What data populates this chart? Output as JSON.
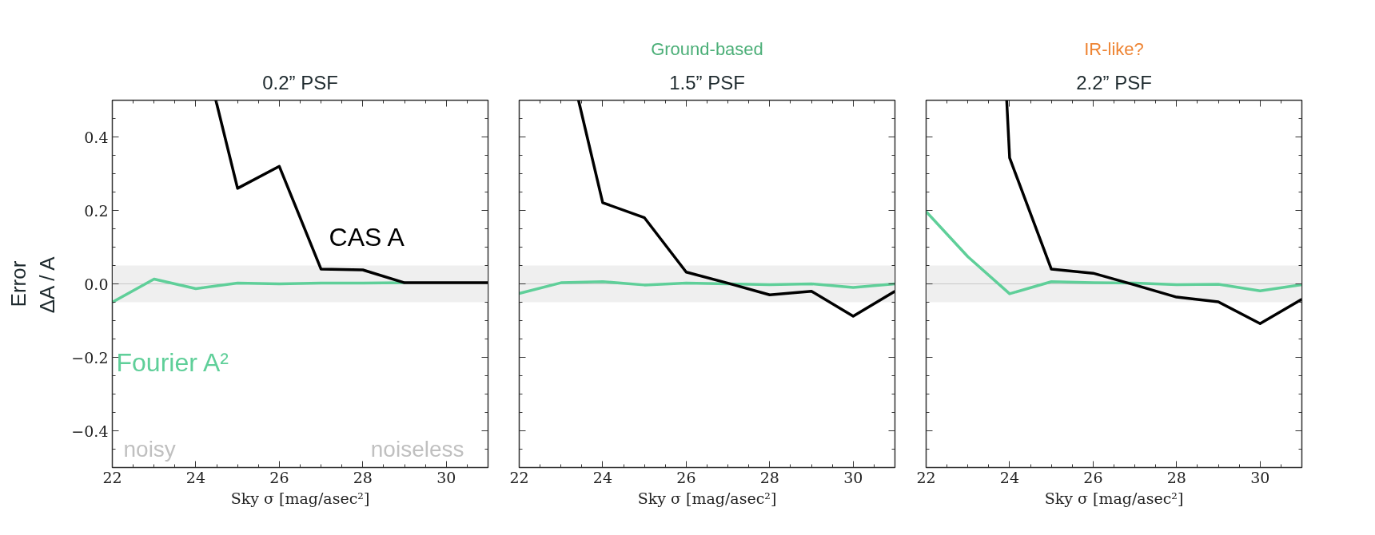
{
  "chart_data": [
    {
      "type": "line",
      "title": "0.2” PSF",
      "xlabel": "Sky σ [mag/asec²]",
      "ylabel": "Error\nΔA / A",
      "xlim": [
        22,
        31
      ],
      "ylim": [
        -0.5,
        0.5
      ],
      "xticks": [
        22,
        24,
        26,
        28,
        30
      ],
      "yticks": [
        {
          "value": -0.4,
          "label": "−0.4"
        },
        {
          "value": -0.2,
          "label": "−0.2"
        },
        {
          "value": 0,
          "label": "0.0"
        },
        {
          "value": 0.2,
          "label": "0.2"
        },
        {
          "value": 0.4,
          "label": "0.4"
        }
      ],
      "grid": false,
      "bands": [
        {
          "axis": "y",
          "from": -0.05,
          "to": 0.05,
          "color": "#efefef"
        }
      ],
      "ref_lines": [
        {
          "axis": "y",
          "value": 0,
          "color": "#c8c8c8"
        }
      ],
      "annotations": [
        "noisy",
        "noiseless"
      ],
      "series": [
        {
          "name": "Fourier A²",
          "color": "#5fcf99",
          "x": [
            22,
            23,
            24,
            25,
            26,
            27,
            28,
            29
          ],
          "values": [
            -0.05,
            0.013,
            -0.013,
            0.002,
            0.0,
            0.002,
            0.002,
            0.003
          ]
        },
        {
          "name": "CAS A",
          "color": "#000000",
          "x": [
            24.48,
            25,
            26,
            27,
            28,
            29,
            30,
            31
          ],
          "values": [
            0.5,
            0.26,
            0.32,
            0.04,
            0.038,
            0.003,
            0.003,
            0.003
          ]
        }
      ]
    },
    {
      "type": "line",
      "title": "1.5” PSF",
      "subtitle": "Ground-based",
      "xlabel": "Sky σ [mag/asec²]",
      "xlim": [
        22,
        31
      ],
      "ylim": [
        -0.5,
        0.5
      ],
      "xticks": [
        22,
        24,
        26,
        28,
        30
      ],
      "yticks": [
        {
          "value": -0.4,
          "label": null
        },
        {
          "value": -0.2,
          "label": null
        },
        {
          "value": 0,
          "label": null
        },
        {
          "value": 0.2,
          "label": null
        },
        {
          "value": 0.4,
          "label": null
        }
      ],
      "tick_labels": "x",
      "grid": false,
      "bands": [
        {
          "axis": "y",
          "from": -0.05,
          "to": 0.05,
          "color": "#efefef"
        }
      ],
      "ref_lines": [
        {
          "axis": "y",
          "value": 0,
          "color": "#c8c8c8"
        }
      ],
      "series": [
        {
          "color": "#5fcf99",
          "x": [
            22,
            23,
            24,
            25,
            26,
            27,
            28,
            29,
            30,
            31
          ],
          "values": [
            -0.026,
            0.003,
            0.006,
            -0.003,
            0.002,
            0.0,
            -0.002,
            0.0,
            -0.01,
            0.0
          ]
        },
        {
          "color": "#000000",
          "x": [
            23.42,
            24,
            25,
            26,
            27,
            28,
            29,
            30,
            31
          ],
          "values": [
            0.5,
            0.221,
            0.18,
            0.032,
            0.002,
            -0.03,
            -0.02,
            -0.088,
            -0.02
          ]
        }
      ]
    },
    {
      "type": "line",
      "title": "2.2” PSF",
      "subtitle": "IR-like?",
      "xlabel": "Sky σ [mag/asec²]",
      "xlim": [
        22,
        31
      ],
      "ylim": [
        -0.5,
        0.5
      ],
      "xticks": [
        22,
        24,
        26,
        28,
        30
      ],
      "yticks": [
        {
          "value": -0.4,
          "label": null
        },
        {
          "value": -0.2,
          "label": null
        },
        {
          "value": 0,
          "label": null
        },
        {
          "value": 0.2,
          "label": null
        },
        {
          "value": 0.4,
          "label": null
        }
      ],
      "tick_labels": "x",
      "grid": false,
      "bands": [
        {
          "axis": "y",
          "from": -0.05,
          "to": 0.05,
          "color": "#efefef"
        }
      ],
      "ref_lines": [
        {
          "axis": "y",
          "value": 0,
          "color": "#c8c8c8"
        }
      ],
      "series": [
        {
          "color": "#5fcf99",
          "x": [
            22,
            23,
            24,
            25,
            26,
            27,
            28,
            29,
            30,
            31
          ],
          "values": [
            0.197,
            0.074,
            -0.027,
            0.006,
            0.003,
            0.002,
            -0.002,
            -0.001,
            -0.019,
            -0.002
          ]
        },
        {
          "color": "#000000",
          "x": [
            23.93,
            24,
            25,
            26,
            27,
            28,
            29,
            30,
            31
          ],
          "values": [
            0.5,
            0.343,
            0.04,
            0.029,
            -0.003,
            -0.036,
            -0.049,
            -0.108,
            -0.042
          ]
        }
      ]
    }
  ]
}
